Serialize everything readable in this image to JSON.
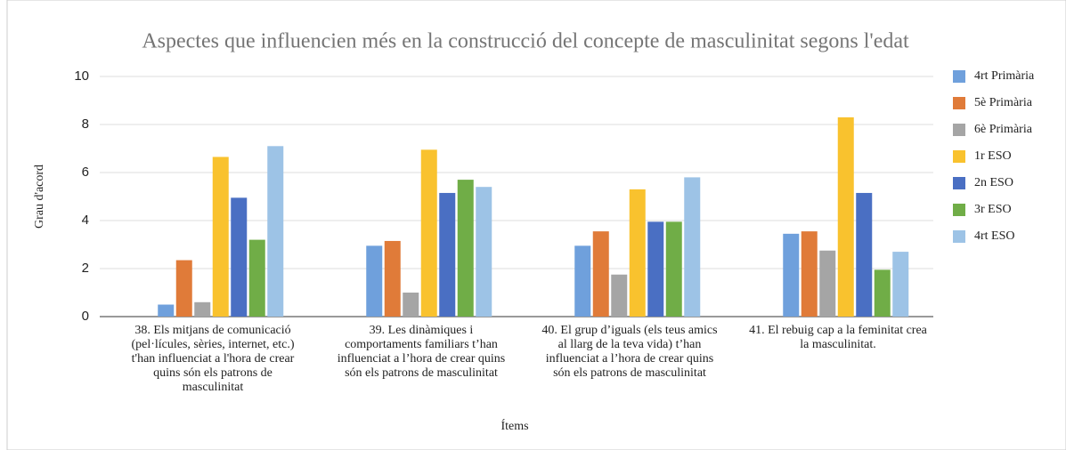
{
  "chart_data": {
    "type": "bar",
    "title": "Aspectes que influencien més en la construcció del concepte de masculinitat segons l'edat",
    "xlabel": "Ítems",
    "ylabel": "Grau d'acord",
    "categories": [
      "38. Els mitjans de comunicació (pel·lícules, sèries, internet, etc.) t'han influenciat a l'hora de crear quins són els patrons de masculinitat",
      "39. Les dinàmiques i comportaments familiars t’han influenciat a l’hora de crear quins són els patrons de masculinitat",
      "40. El grup d’iguals (els teus amics al llarg de la teva vida) t’han influenciat a l’hora de crear quins són els patrons de masculinitat",
      "41. El rebuig cap a la feminitat crea la masculinitat."
    ],
    "series": [
      {
        "name": "4rt Primària",
        "color": "#6fa0dc",
        "values": [
          0.5,
          2.95,
          2.95,
          3.45
        ]
      },
      {
        "name": "5è Primària",
        "color": "#e07b39",
        "values": [
          2.35,
          3.15,
          3.55,
          3.55
        ]
      },
      {
        "name": "6è Primària",
        "color": "#a5a5a5",
        "values": [
          0.6,
          1.0,
          1.75,
          2.75
        ]
      },
      {
        "name": "1r ESO",
        "color": "#f9c22e",
        "values": [
          6.65,
          6.95,
          5.3,
          8.3
        ]
      },
      {
        "name": "2n ESO",
        "color": "#4a6fc3",
        "values": [
          4.95,
          5.15,
          3.95,
          5.15
        ]
      },
      {
        "name": "3r ESO",
        "color": "#70ad47",
        "values": [
          3.2,
          5.7,
          3.95,
          1.95
        ]
      },
      {
        "name": "4rt ESO",
        "color": "#9dc3e6",
        "values": [
          7.1,
          5.4,
          5.8,
          2.7
        ]
      }
    ],
    "ylim": [
      0,
      10
    ],
    "yticks": [
      0,
      2,
      4,
      6,
      8,
      10
    ],
    "grid": true,
    "legend": "right"
  }
}
